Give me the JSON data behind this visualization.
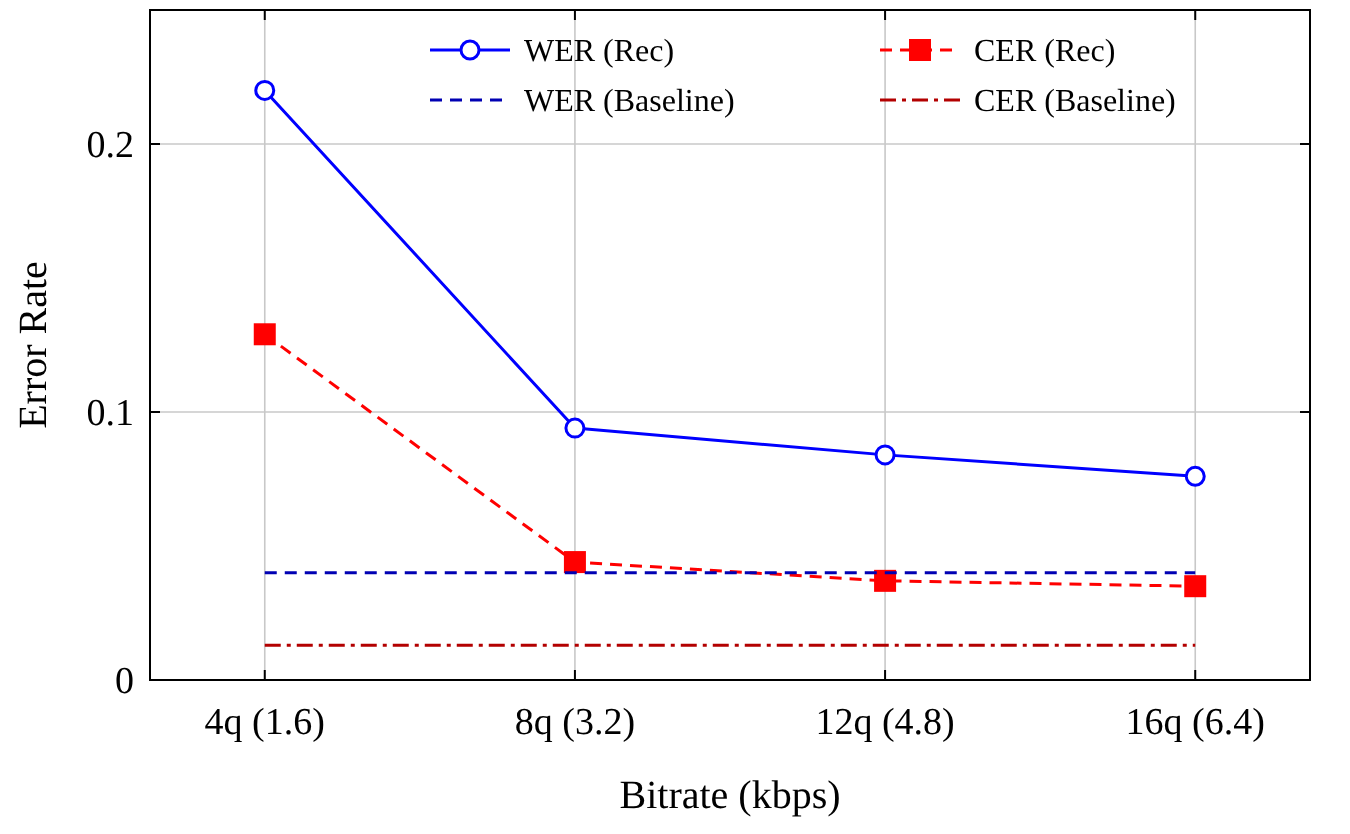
{
  "chart_data": {
    "type": "line",
    "xlabel": "Bitrate (kbps)",
    "ylabel": "Error Rate",
    "categories": [
      "4q (1.6)",
      "8q (3.2)",
      "12q (4.8)",
      "16q (6.4)"
    ],
    "series": [
      {
        "name": "WER (Rec)",
        "color": "#0000ff",
        "values": [
          0.22,
          0.094,
          0.084,
          0.076
        ],
        "marker": "circle",
        "line_style": "solid"
      },
      {
        "name": "CER (Rec)",
        "color": "#ff0000",
        "values": [
          0.129,
          0.044,
          0.037,
          0.035
        ],
        "marker": "square",
        "line_style": "dashed"
      },
      {
        "name": "WER (Baseline)",
        "color": "#0000b3",
        "values": [
          0.04,
          0.04,
          0.04,
          0.04
        ],
        "marker": "none",
        "line_style": "dashed"
      },
      {
        "name": "CER (Baseline)",
        "color": "#b30000",
        "values": [
          0.013,
          0.013,
          0.013,
          0.013
        ],
        "marker": "none",
        "line_style": "dashdot"
      }
    ],
    "ylim": [
      0,
      0.25
    ],
    "yticks": [
      0,
      0.1,
      0.2
    ],
    "grid": true,
    "legend": "top right"
  }
}
